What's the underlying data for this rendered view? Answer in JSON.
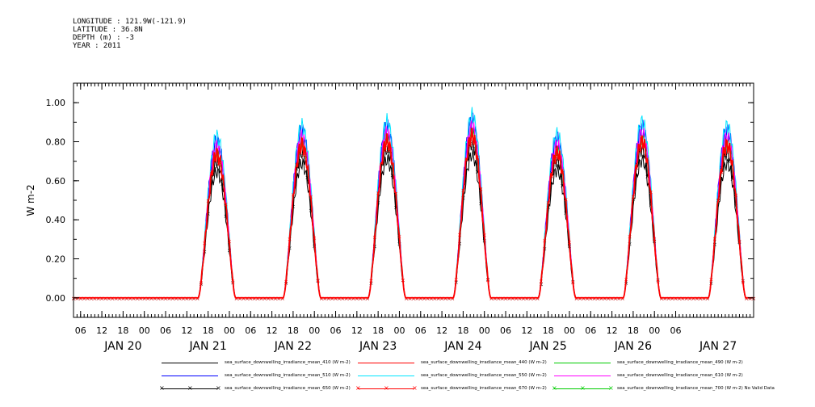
{
  "header": {
    "longitude": "LONGITUDE : 121.9W(-121.9)",
    "latitude": "LATITUDE : 36.8N",
    "depth": "DEPTH (m) : -3",
    "year": "YEAR : 2011"
  },
  "chart_data": {
    "type": "line",
    "ylabel": "W m-2",
    "xlabel": "",
    "ylim": [
      -0.1,
      1.1
    ],
    "yticks": [
      0.0,
      0.2,
      0.4,
      0.6,
      0.8,
      1.0
    ],
    "ytick_labels": [
      "0.00",
      "0.20",
      "0.40",
      "0.60",
      "0.80",
      "1.00"
    ],
    "x_hour_ticks": [
      "06",
      "12",
      "18",
      "00",
      "06",
      "12",
      "18",
      "00",
      "06",
      "12",
      "18",
      "00",
      "06",
      "12",
      "18",
      "00",
      "06",
      "12",
      "18",
      "00",
      "06",
      "12",
      "18",
      "00",
      "06",
      "12",
      "18",
      "00",
      "06"
    ],
    "x_day_labels": [
      "JAN 20",
      "JAN 21",
      "JAN 22",
      "JAN 23",
      "JAN 24",
      "JAN 25",
      "JAN 26",
      "JAN 27"
    ],
    "x_range_hours": [
      -20,
      172
    ],
    "grid": false,
    "legend_position": "bottom",
    "day_peaks": [
      {
        "day": "JAN 20",
        "peak_hour": 20.5,
        "peak_ref": 0.75
      },
      {
        "day": "JAN 21",
        "peak_hour": 44.5,
        "peak_ref": 0.8
      },
      {
        "day": "JAN 22",
        "peak_hour": 68.5,
        "peak_ref": 0.82
      },
      {
        "day": "JAN 23",
        "peak_hour": 92.5,
        "peak_ref": 0.85
      },
      {
        "day": "JAN 24",
        "peak_hour": 116.5,
        "peak_ref": 0.76
      },
      {
        "day": "JAN 25",
        "peak_hour": 140.5,
        "peak_ref": 0.82
      },
      {
        "day": "JAN 26",
        "peak_hour": 164.5,
        "peak_ref": 0.8
      }
    ],
    "series": [
      {
        "name": "sea_surface_downwelling_irradiance_mean_410 (W m-2)",
        "color": "#000000",
        "scale": 0.86,
        "marker": ""
      },
      {
        "name": "sea_surface_downwelling_irradiance_mean_440 (W m-2)",
        "color": "#ff0000",
        "scale": 0.97,
        "marker": ""
      },
      {
        "name": "sea_surface_downwelling_irradiance_mean_490 (W m-2)",
        "color": "#00cc00",
        "scale": 1.0,
        "marker": ""
      },
      {
        "name": "sea_surface_downwelling_irradiance_mean_510 (W m-2)",
        "color": "#0000ff",
        "scale": 1.07,
        "marker": ""
      },
      {
        "name": "sea_surface_downwelling_irradiance_mean_550 (W m-2)",
        "color": "#00e5ff",
        "scale": 1.1,
        "marker": ""
      },
      {
        "name": "sea_surface_downwelling_irradiance_mean_610 (W m-2)",
        "color": "#ff00ff",
        "scale": 1.03,
        "marker": ""
      },
      {
        "name": "sea_surface_downwelling_irradiance_mean_650 (W m-2)",
        "color": "#000000",
        "scale": 0.93,
        "marker": "×"
      },
      {
        "name": "sea_surface_downwelling_irradiance_mean_670 (W m-2)",
        "color": "#ff0000",
        "scale": 0.98,
        "marker": "×"
      },
      {
        "name": "sea_surface_downwelling_irradiance_mean_700 (W m-2) No Valid Data",
        "color": "#00cc00",
        "scale": 0,
        "marker": "×"
      }
    ]
  }
}
